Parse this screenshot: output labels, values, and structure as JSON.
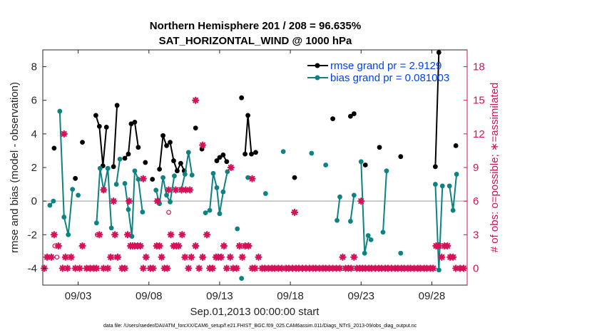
{
  "chart_data": {
    "type": "line",
    "title": "Northern Hemisphere 201 / 208 = 96.635%",
    "subtitle": "SAT_HORIZONTAL_WIND @ 1000 hPa",
    "xlabel": "Sep.01,2013 00:00:00 start",
    "ylabel": "rmse and bias (model - observation)",
    "y2label": "# of obs: o=possible; ∗=assimilated",
    "xlim": [
      0.5,
      30.5
    ],
    "ylim": [
      -5,
      9
    ],
    "y2lim": [
      -1.5,
      19.5
    ],
    "x_ticks": [
      3,
      8,
      13,
      18,
      23,
      28
    ],
    "x_tick_labels": [
      "09/03",
      "09/08",
      "09/13",
      "09/18",
      "09/23",
      "09/28"
    ],
    "y_ticks": [
      -4,
      -2,
      0,
      2,
      4,
      6,
      8
    ],
    "y_tick_labels": [
      "-4",
      "-2",
      "0",
      "2",
      "4",
      "6",
      "8"
    ],
    "y2_ticks": [
      0,
      3,
      6,
      9,
      12,
      15,
      18
    ],
    "y2_tick_labels": [
      "0",
      "3",
      "6",
      "9",
      "12",
      "15",
      "18"
    ],
    "zero_line": 0,
    "colors": {
      "rmse": "#000000",
      "bias": "#0e8282",
      "obs": "#d41159",
      "zero": "#bbbbbb"
    },
    "legend": [
      {
        "name": "rmse grand pr = 2.9129",
        "color": "#000000"
      },
      {
        "name": "bias grand pr = 0.081003",
        "color": "#0e8282"
      }
    ],
    "series": [
      {
        "name": "rmse",
        "segments": [
          [
            [
              1.3,
              3.15
            ]
          ],
          [
            [
              2.8,
              1.35
            ]
          ],
          [
            [
              3.3,
              3.5
            ]
          ],
          [
            [
              4.25,
              5.1
            ],
            [
              4.5,
              4.45
            ],
            [
              4.75,
              2.1
            ],
            [
              5.0,
              4.4
            ]
          ],
          [
            [
              5.5,
              2.05
            ],
            [
              5.75,
              5.7
            ]
          ],
          [
            [
              6.3,
              2.55
            ],
            [
              6.55,
              2.8
            ],
            [
              6.75,
              4.6
            ],
            [
              7.0,
              4.7
            ],
            [
              7.25,
              3.2
            ]
          ],
          [
            [
              7.75,
              2.3
            ]
          ],
          [
            [
              8.25,
              1.3
            ]
          ],
          [
            [
              8.75,
              1.9
            ],
            [
              9.0,
              3.9
            ],
            [
              9.25,
              3.3
            ],
            [
              9.5,
              3.5
            ],
            [
              9.75,
              2.4
            ],
            [
              10.0,
              1.8
            ],
            [
              10.25,
              2.25
            ],
            [
              10.5,
              1.8
            ]
          ],
          [
            [
              11.3,
              4.35
            ]
          ],
          [
            [
              11.75,
              3.1
            ]
          ],
          [
            [
              12.8,
              2.4
            ],
            [
              13.0,
              2.6
            ],
            [
              13.25,
              2.75
            ],
            [
              13.5,
              2.35
            ]
          ],
          [
            [
              14.55,
              6.15
            ]
          ],
          [
            [
              14.8,
              2.8
            ],
            [
              15.0,
              5.1
            ],
            [
              15.25,
              2.8
            ]
          ],
          [
            [
              15.55,
              2.9
            ]
          ],
          [
            [
              18.3,
              1.4
            ]
          ],
          [
            [
              21.0,
              4.9
            ]
          ],
          [
            [
              22.25,
              5.05
            ],
            [
              22.5,
              5.2
            ]
          ],
          [
            [
              23.3,
              2.15
            ]
          ],
          [
            [
              24.3,
              3.2
            ]
          ],
          [
            [
              25.8,
              2.65
            ]
          ],
          [
            [
              28.25,
              2.05
            ],
            [
              28.5,
              8.85
            ]
          ],
          [
            [
              29.7,
              3.3
            ]
          ]
        ]
      },
      {
        "name": "bias",
        "segments": [
          [
            [
              1.0,
              -0.25
            ],
            [
              1.25,
              0.0
            ]
          ],
          [
            [
              1.7,
              5.35
            ],
            [
              2.0,
              -0.95
            ],
            [
              2.3,
              -2.0
            ],
            [
              2.6,
              0.7
            ]
          ],
          [
            [
              3.0,
              0.35
            ]
          ],
          [
            [
              4.3,
              -1.3
            ],
            [
              4.55,
              1.95
            ],
            [
              4.8,
              0.65
            ],
            [
              5.1,
              1.95
            ],
            [
              5.35,
              -1.6
            ]
          ],
          [
            [
              5.7,
              1.0
            ],
            [
              5.95,
              2.5
            ]
          ],
          [
            [
              6.3,
              1.05
            ],
            [
              6.55,
              -0.5
            ],
            [
              6.8,
              -2.1
            ],
            [
              7.0,
              1.8
            ],
            [
              7.25,
              1.3
            ],
            [
              7.55,
              -0.65
            ]
          ],
          [
            [
              8.5,
              0.65
            ],
            [
              8.75,
              -0.15
            ],
            [
              9.0,
              1.4
            ],
            [
              9.25,
              0.35
            ],
            [
              9.5,
              -0.05
            ],
            [
              9.8,
              1.5
            ]
          ],
          [
            [
              10.3,
              0.7
            ],
            [
              10.55,
              1.6
            ],
            [
              10.8,
              2.9
            ],
            [
              11.05,
              1.55
            ]
          ],
          [
            [
              12.0,
              -0.7
            ],
            [
              12.3,
              -0.55
            ],
            [
              12.55,
              1.65
            ],
            [
              12.8,
              0.8
            ],
            [
              13.0,
              -0.75
            ],
            [
              13.25,
              0.55
            ],
            [
              13.55,
              1.75
            ]
          ],
          [
            [
              14.25,
              -1.65
            ]
          ],
          [
            [
              14.55,
              -4.6
            ]
          ],
          [
            [
              15.0,
              1.4
            ]
          ],
          [
            [
              16.25,
              0.45
            ]
          ],
          [
            [
              17.5,
              2.95
            ]
          ],
          [
            [
              19.5,
              2.85
            ]
          ],
          [
            [
              20.5,
              2.15
            ]
          ],
          [
            [
              21.3,
              -1.15
            ],
            [
              21.5,
              0.25
            ]
          ],
          [
            [
              22.25,
              -1.2
            ],
            [
              22.5,
              0.35
            ]
          ],
          [
            [
              23.0,
              2.35
            ],
            [
              23.25,
              -3.1
            ],
            [
              23.5,
              -2.05
            ],
            [
              23.7,
              -2.3
            ]
          ],
          [
            [
              24.55,
              -1.85
            ],
            [
              24.8,
              1.8
            ]
          ],
          [
            [
              25.8,
              -3.1
            ]
          ],
          [
            [
              28.25,
              1.0
            ],
            [
              28.5,
              -4.1
            ],
            [
              28.75,
              0.9
            ]
          ],
          [
            [
              29.25,
              0.9
            ],
            [
              29.5,
              -0.55
            ],
            [
              29.75,
              1.6
            ]
          ]
        ]
      }
    ],
    "obs_assimilated": [
      [
        0.6,
        0
      ],
      [
        0.8,
        1
      ],
      [
        1.1,
        1
      ],
      [
        1.3,
        3
      ],
      [
        1.6,
        2
      ],
      [
        1.9,
        0
      ],
      [
        2.1,
        1
      ],
      [
        2.25,
        0
      ],
      [
        2.5,
        1
      ],
      [
        2.8,
        0
      ],
      [
        3.1,
        0
      ],
      [
        3.3,
        2
      ],
      [
        3.6,
        0
      ],
      [
        3.85,
        0
      ],
      [
        4.1,
        0
      ],
      [
        4.3,
        0
      ],
      [
        4.5,
        3
      ],
      [
        4.8,
        0
      ],
      [
        5.1,
        0
      ],
      [
        5.3,
        1
      ],
      [
        5.6,
        3
      ],
      [
        5.8,
        1
      ],
      [
        6.1,
        0
      ],
      [
        6.3,
        0
      ],
      [
        6.5,
        3
      ],
      [
        6.7,
        2
      ],
      [
        6.85,
        2
      ],
      [
        7.0,
        2
      ],
      [
        7.2,
        2
      ],
      [
        7.4,
        2
      ],
      [
        7.6,
        0
      ],
      [
        7.8,
        1
      ],
      [
        8.1,
        0
      ],
      [
        8.3,
        0
      ],
      [
        8.55,
        2
      ],
      [
        8.75,
        2
      ],
      [
        8.9,
        1
      ],
      [
        9.1,
        0
      ],
      [
        9.3,
        0
      ],
      [
        9.55,
        3
      ],
      [
        9.75,
        2
      ],
      [
        9.95,
        2
      ],
      [
        10.1,
        2
      ],
      [
        10.35,
        3
      ],
      [
        10.55,
        1
      ],
      [
        10.8,
        0
      ],
      [
        11.0,
        1
      ],
      [
        11.3,
        2
      ],
      [
        11.55,
        0
      ],
      [
        11.8,
        1
      ],
      [
        12.1,
        3
      ],
      [
        12.3,
        0
      ],
      [
        12.5,
        0
      ],
      [
        12.75,
        1
      ],
      [
        12.9,
        1
      ],
      [
        13.1,
        1
      ],
      [
        13.3,
        2
      ],
      [
        13.5,
        0
      ],
      [
        13.75,
        1
      ],
      [
        13.95,
        0
      ],
      [
        14.2,
        0
      ],
      [
        14.4,
        2
      ],
      [
        14.6,
        1
      ],
      [
        14.8,
        2
      ],
      [
        15.05,
        2
      ],
      [
        15.3,
        0
      ],
      [
        15.5,
        0
      ],
      [
        15.75,
        1
      ],
      [
        16.0,
        0
      ],
      [
        16.2,
        0
      ],
      [
        16.45,
        0
      ],
      [
        16.7,
        0
      ],
      [
        16.9,
        0
      ],
      [
        17.15,
        0
      ],
      [
        17.4,
        0
      ],
      [
        17.7,
        0
      ],
      [
        17.9,
        0
      ],
      [
        18.15,
        0
      ],
      [
        18.4,
        0
      ],
      [
        18.6,
        0
      ],
      [
        18.85,
        0
      ],
      [
        19.1,
        0
      ],
      [
        19.35,
        0
      ],
      [
        19.6,
        0
      ],
      [
        19.8,
        0
      ],
      [
        20.05,
        0
      ],
      [
        20.3,
        0
      ],
      [
        20.5,
        0
      ],
      [
        20.75,
        0
      ],
      [
        21.0,
        0
      ],
      [
        21.25,
        0
      ],
      [
        21.5,
        0
      ],
      [
        21.7,
        1
      ],
      [
        21.9,
        0
      ],
      [
        22.1,
        0
      ],
      [
        22.3,
        0
      ],
      [
        22.5,
        1
      ],
      [
        22.7,
        0
      ],
      [
        22.9,
        0
      ],
      [
        23.1,
        0
      ],
      [
        23.3,
        0
      ],
      [
        23.55,
        0
      ],
      [
        23.75,
        0
      ],
      [
        24.0,
        0
      ],
      [
        24.25,
        0
      ],
      [
        24.45,
        0
      ],
      [
        24.7,
        0
      ],
      [
        24.9,
        0
      ],
      [
        25.15,
        0
      ],
      [
        25.4,
        0
      ],
      [
        25.6,
        0
      ],
      [
        25.85,
        0
      ],
      [
        26.05,
        0
      ],
      [
        26.3,
        0
      ],
      [
        26.5,
        0
      ],
      [
        26.75,
        0
      ],
      [
        27.0,
        0
      ],
      [
        27.2,
        0
      ],
      [
        27.45,
        0
      ],
      [
        27.65,
        0
      ],
      [
        27.9,
        0
      ],
      [
        28.1,
        0
      ],
      [
        28.3,
        2
      ],
      [
        28.5,
        2
      ],
      [
        28.7,
        1
      ],
      [
        28.9,
        2
      ],
      [
        29.1,
        2
      ],
      [
        29.3,
        1
      ],
      [
        29.5,
        1
      ],
      [
        29.7,
        0
      ],
      [
        30.0,
        0
      ],
      [
        30.25,
        0
      ]
    ],
    "obs_assimilated_large": [
      [
        2.0,
        12
      ],
      [
        4.8,
        7
      ],
      [
        5.5,
        6
      ],
      [
        6.6,
        6
      ],
      [
        7.6,
        8
      ],
      [
        8.6,
        6
      ],
      [
        9.4,
        7
      ],
      [
        9.9,
        7
      ],
      [
        10.3,
        7
      ],
      [
        10.6,
        7
      ],
      [
        10.9,
        7
      ],
      [
        11.3,
        15
      ],
      [
        11.8,
        11
      ],
      [
        13.8,
        9
      ],
      [
        15.3,
        8
      ],
      [
        18.3,
        5
      ],
      [
        23.0,
        6
      ]
    ],
    "obs_possible": [
      [
        1.35,
        2
      ],
      [
        1.5,
        1
      ],
      [
        4.35,
        3
      ],
      [
        5.5,
        1
      ],
      [
        9.4,
        5
      ]
    ]
  },
  "footnote": "data file: /Users/raeder/DAI/ATM_forcXX/CAM6_setup/f.e21.FHIST_BGC.f09_025.CAM6assim.011/Diags_NTrS_2013-09/obs_diag_output.nc"
}
